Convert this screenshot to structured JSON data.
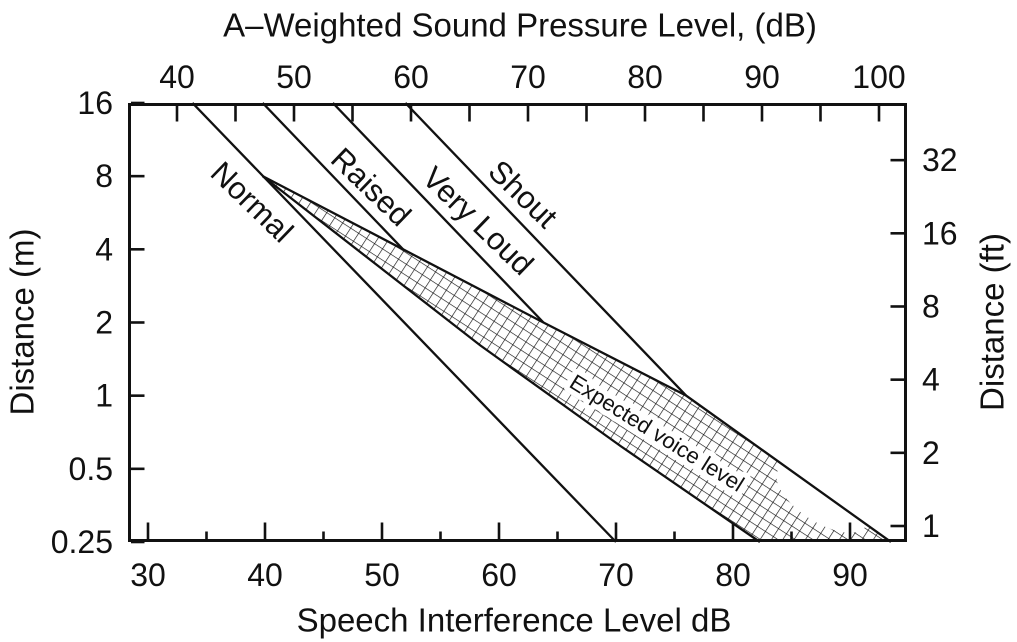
{
  "figure": {
    "top_axis_title": "A–Weighted Sound Pressure Level, (dB)",
    "bottom_axis_title": "Speech Interference Level dB",
    "left_axis_title": "Distance (m)",
    "right_axis_title": "Distance (ft)"
  },
  "chart_data": {
    "type": "line",
    "title": "A–Weighted Sound Pressure Level, (dB)",
    "xlabel": "Speech Interference Level dB",
    "ylabel": "Distance (m)",
    "ylabel_right": "Distance (ft)",
    "axes": {
      "bottom_x": {
        "label": "Speech Interference Level dB",
        "unit": "dB SIL",
        "range": [
          28.3,
          94.9
        ],
        "major_ticks": [
          30,
          40,
          50,
          60,
          70,
          80,
          90
        ],
        "minor_ticks": [
          35,
          45,
          55,
          65,
          75,
          85
        ],
        "grid": false
      },
      "top_x": {
        "label": "A–Weighted Sound Pressure Level, (dB)",
        "unit": "dBA",
        "range": [
          35.8,
          102.4
        ],
        "ticks": [
          40,
          45,
          50,
          55,
          60,
          65,
          70,
          75,
          80,
          85,
          90,
          95,
          100
        ],
        "labeled_ticks": [
          40,
          50,
          60,
          70,
          80,
          90,
          100
        ],
        "grid": false
      },
      "left_y": {
        "label": "Distance (m)",
        "scale": "log2",
        "range": [
          0.25,
          16
        ],
        "ticks": [
          16,
          8,
          4,
          2,
          1,
          0.5,
          0.25
        ]
      },
      "right_y": {
        "label": "Distance (ft)",
        "scale": "log2",
        "ticks": [
          32,
          16,
          8,
          4,
          2,
          1
        ]
      }
    },
    "series": [
      {
        "id": "normal",
        "label": "Normal",
        "points_sil_db_vs_m": [
          [
            33.8,
            16
          ],
          [
            70.0,
            0.25
          ]
        ]
      },
      {
        "id": "raised",
        "label": "Raised",
        "points_sil_db_vs_m": [
          [
            39.8,
            16
          ],
          [
            51.8,
            4
          ]
        ]
      },
      {
        "id": "very_loud",
        "label": "Very Loud",
        "points_sil_db_vs_m": [
          [
            45.8,
            16
          ],
          [
            63.8,
            2
          ]
        ]
      },
      {
        "id": "shout",
        "label": "Shout",
        "points_sil_db_vs_m": [
          [
            52.0,
            16
          ],
          [
            76.0,
            1
          ]
        ]
      }
    ],
    "band": {
      "id": "expected_voice_level",
      "label": "Expected voice level",
      "fill": "crosshatch",
      "upper_sil_db_vs_m": [
        [
          39.8,
          8
        ],
        [
          51.8,
          4
        ],
        [
          63.8,
          2
        ],
        [
          76.0,
          1
        ],
        [
          93.5,
          0.25
        ]
      ],
      "lower_sil_db_vs_m": [
        [
          39.8,
          8
        ],
        [
          58.4,
          1.61
        ],
        [
          70.4,
          0.62
        ],
        [
          82.3,
          0.25
        ]
      ]
    },
    "colors": {
      "ink": "#111111",
      "background": "#ffffff"
    }
  }
}
